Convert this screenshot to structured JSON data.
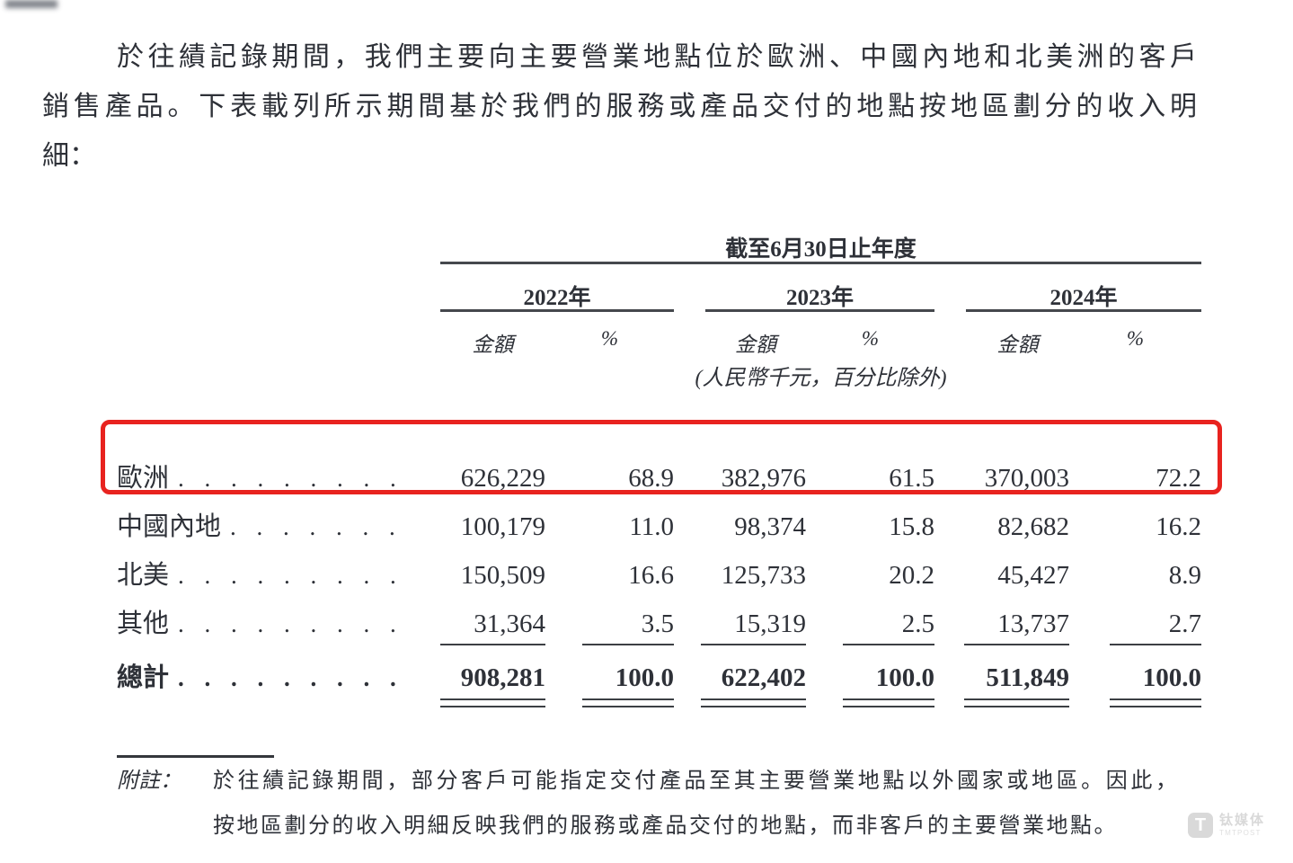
{
  "colors": {
    "highlight_border": "#e8231f",
    "text": "#2e3138",
    "rule": "#45484d",
    "watermark": "#d9d9d9"
  },
  "paragraph": {
    "lines": [
      "於往績記錄期間，我們主要向主要營業地點位於歐洲、中國內地和北美洲的客戶",
      "銷售產品。下表載列所示期間基於我們的服務或產品交付的地點按地區劃分的收入明",
      "細："
    ]
  },
  "table": {
    "span_header": "截至6月30日止年度",
    "years": [
      "2022年",
      "2023年",
      "2024年"
    ],
    "sub_headers": {
      "amount": "金額",
      "percent": "%"
    },
    "unit_note": "(人民幣千元，百分比除外)",
    "leader_dots": ". . . . . . . . . . . . . . . . . . . . . . . . . . . .",
    "rows": [
      {
        "label": "歐洲",
        "values": [
          "626,229",
          "68.9",
          "382,976",
          "61.5",
          "370,003",
          "72.2"
        ],
        "highlighted": true
      },
      {
        "label": "中國內地",
        "values": [
          "100,179",
          "11.0",
          "98,374",
          "15.8",
          "82,682",
          "16.2"
        ],
        "highlighted": false
      },
      {
        "label": "北美",
        "values": [
          "150,509",
          "16.6",
          "125,733",
          "20.2",
          "45,427",
          "8.9"
        ],
        "highlighted": false
      },
      {
        "label": "其他",
        "values": [
          "31,364",
          "3.5",
          "15,319",
          "2.5",
          "13,737",
          "2.7"
        ],
        "highlighted": false
      },
      {
        "label": "總計",
        "values": [
          "908,281",
          "100.0",
          "622,402",
          "100.0",
          "511,849",
          "100.0"
        ],
        "highlighted": false
      }
    ]
  },
  "footnote": {
    "label": "附註：",
    "lines": [
      "於往績記錄期間，部分客戶可能指定交付產品至其主要營業地點以外國家或地區。因此，",
      "按地區劃分的收入明細反映我們的服務或產品交付的地點，而非客戶的主要營業地點。"
    ]
  },
  "watermark": {
    "logo_letter": "T",
    "name": "钛媒体",
    "caption": "TMTPOST"
  }
}
